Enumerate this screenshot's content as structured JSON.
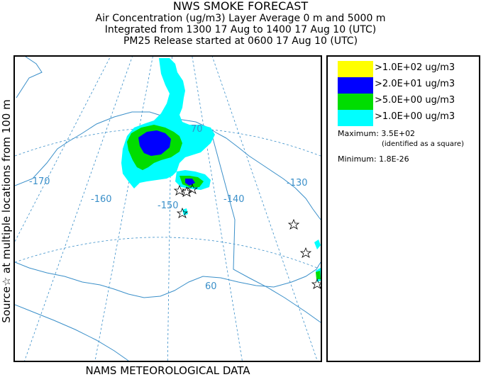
{
  "header": {
    "title": "NWS SMOKE FORECAST",
    "line1": "Air Concentration (ug/m3) Layer Average    0 m and  5000 m",
    "line2": "Integrated from 1300 17 Aug to 1400 17 Aug 10 (UTC)",
    "line3": "PM25 Release started at 0600 17 Aug 10 (UTC)"
  },
  "side_label": "Source☆  at multiple locations   from   100 m",
  "footer": "NAMS METEOROLOGICAL DATA",
  "map": {
    "longitude_labels": [
      "-170",
      "-160",
      "-150",
      "-140",
      "-130"
    ],
    "latitude_labels": [
      "70",
      "60"
    ],
    "colors": {
      "coast": "#3a8fc9",
      "grid": "#3a8fc9"
    }
  },
  "legend": {
    "items": [
      {
        "label": ">1.0E+02 ug/m3",
        "color": "#ffff00"
      },
      {
        "label": ">2.0E+01 ug/m3",
        "color": "#0000ff"
      },
      {
        "label": ">5.0E+00 ug/m3",
        "color": "#00dd00"
      },
      {
        "label": ">1.0E+00 ug/m3",
        "color": "#00ffff"
      }
    ],
    "maximum_label": "Maximum: 3.5E+02",
    "maximum_note": "(identified as a square)",
    "minimum_label": "Minimum: 1.8E-26"
  }
}
